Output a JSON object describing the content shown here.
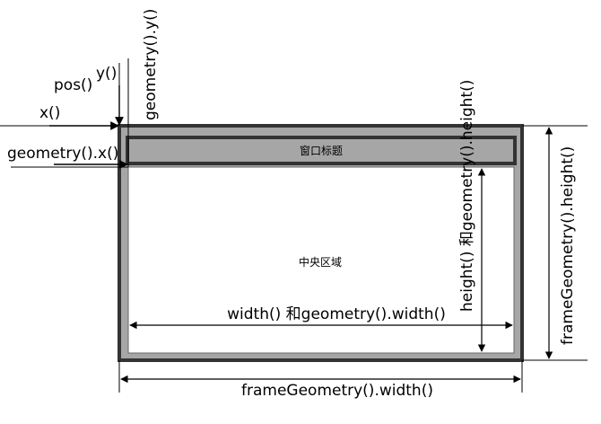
{
  "window": {
    "title_bar_label": "窗口标题",
    "central_area_label": "中央区域",
    "frame_color": "#a6a6a6",
    "title_bar_color": "#a6a6a6",
    "client_color": "#ffffff",
    "border_color": "#333333"
  },
  "labels": {
    "pos": "pos()",
    "x": "x()",
    "y": "y()",
    "geometry_x": "geometry().x()",
    "geometry_y": "geometry().y()",
    "height_geometry_height": "height() 和geometry().height()",
    "width_geometry_width": "width() 和geometry().width()",
    "frame_geometry_width": "frameGeometry().width()",
    "frame_geometry_height": "frameGeometry().height()"
  }
}
